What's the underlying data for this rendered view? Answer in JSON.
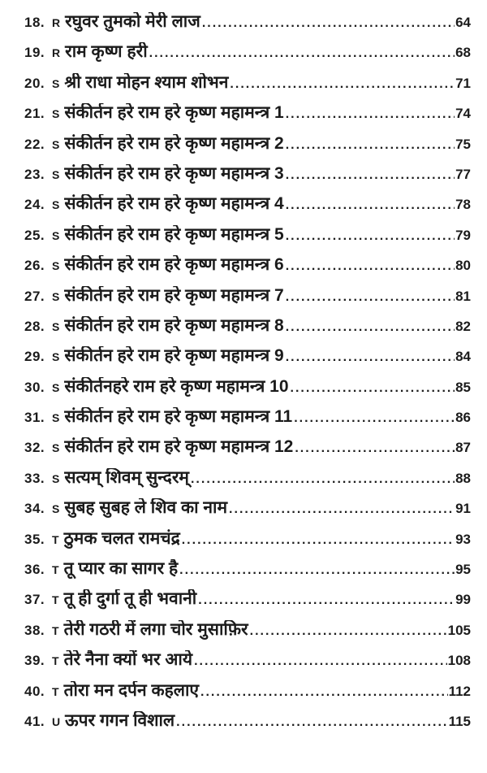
{
  "page": {
    "background_color": "#ffffff",
    "text_color": "#1b1b1b"
  },
  "toc": {
    "entries": [
      {
        "num": "18.",
        "prefix": "R",
        "title": "रघुवर तुमको मेरी लाज",
        "page": "64"
      },
      {
        "num": "19.",
        "prefix": "R",
        "title": "राम कृष्ण हरी",
        "page": "68"
      },
      {
        "num": "20.",
        "prefix": "S",
        "title": "श्री राधा मोहन श्याम शोभन",
        "page": "71"
      },
      {
        "num": "21.",
        "prefix": "S",
        "title": "संकीर्तन हरे राम हरे कृष्ण महामन्त्र 1",
        "page": "74"
      },
      {
        "num": "22.",
        "prefix": "S",
        "title": "संकीर्तन हरे राम हरे कृष्ण महामन्त्र 2",
        "page": "75"
      },
      {
        "num": "23.",
        "prefix": "S",
        "title": "संकीर्तन हरे राम हरे कृष्ण महामन्त्र 3",
        "page": "77"
      },
      {
        "num": "24.",
        "prefix": "S",
        "title": "संकीर्तन हरे राम हरे कृष्ण महामन्त्र 4",
        "page": "78"
      },
      {
        "num": "25.",
        "prefix": "S",
        "title": "संकीर्तन हरे राम हरे कृष्ण महामन्त्र 5",
        "page": "79"
      },
      {
        "num": "26.",
        "prefix": "S",
        "title": "संकीर्तन हरे राम हरे कृष्ण महामन्त्र 6",
        "page": "80"
      },
      {
        "num": "27.",
        "prefix": "S",
        "title": "संकीर्तन हरे राम हरे कृष्ण महामन्त्र 7",
        "page": "81"
      },
      {
        "num": "28.",
        "prefix": "S",
        "title": "संकीर्तन हरे राम हरे कृष्ण महामन्त्र 8",
        "page": "82"
      },
      {
        "num": "29.",
        "prefix": "S",
        "title": "संकीर्तन हरे राम हरे कृष्ण महामन्त्र 9",
        "page": "84"
      },
      {
        "num": "30.",
        "prefix": "S",
        "title": "संकीर्तनहरे राम हरे कृष्ण महामन्त्र 10 ",
        "page": "85"
      },
      {
        "num": "31.",
        "prefix": "S",
        "title": "संकीर्तन हरे राम हरे कृष्ण महामन्त्र 11",
        "page": "86"
      },
      {
        "num": "32.",
        "prefix": "S",
        "title": "संकीर्तन हरे राम हरे कृष्ण महामन्त्र 12",
        "page": "87"
      },
      {
        "num": "33.",
        "prefix": "S",
        "title": "सत्यम् शिवम् सुन्दरम्",
        "page": "88"
      },
      {
        "num": "34.",
        "prefix": "S",
        "title": "सुबह सुबह ले शिव का नाम",
        "page": "91"
      },
      {
        "num": "35.",
        "prefix": "T",
        "title": "ठुमक चलत रामचंद्र",
        "page": "93"
      },
      {
        "num": "36.",
        "prefix": "T",
        "title": "तू प्यार का सागर है",
        "page": "95"
      },
      {
        "num": "37.",
        "prefix": "T",
        "title": "तू ही दुर्गा तू ही भवानी",
        "page": "99"
      },
      {
        "num": "38.",
        "prefix": "T",
        "title": "तेरी गठरी में लगा चोर मुसाफ़िर",
        "page": "105"
      },
      {
        "num": "39.",
        "prefix": "T",
        "title": "तेरे नैना क्यों भर आये",
        "page": "108"
      },
      {
        "num": "40.",
        "prefix": "T",
        "title": "तोरा मन दर्पन कहलाए",
        "page": "112"
      },
      {
        "num": "41.",
        "prefix": "U",
        "title": "ऊपर गगन विशाल",
        "page": "115"
      }
    ]
  }
}
